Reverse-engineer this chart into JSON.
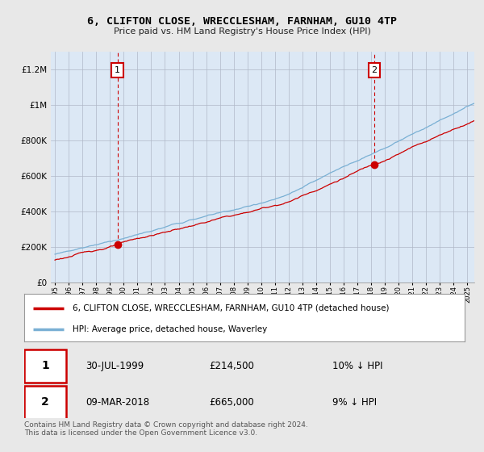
{
  "title": "6, CLIFTON CLOSE, WRECCLESHAM, FARNHAM, GU10 4TP",
  "subtitle": "Price paid vs. HM Land Registry's House Price Index (HPI)",
  "ylim": [
    0,
    1300000
  ],
  "yticks": [
    0,
    200000,
    400000,
    600000,
    800000,
    1000000,
    1200000
  ],
  "ytick_labels": [
    "£0",
    "£200K",
    "£400K",
    "£600K",
    "£800K",
    "£1M",
    "£1.2M"
  ],
  "sale1_year": 1999.58,
  "sale1_price": 214500,
  "sale2_year": 2018.2,
  "sale2_price": 665000,
  "house_color": "#cc0000",
  "hpi_color": "#7ab0d4",
  "legend_house": "6, CLIFTON CLOSE, WRECCLESHAM, FARNHAM, GU10 4TP (detached house)",
  "legend_hpi": "HPI: Average price, detached house, Waverley",
  "annotation1_date": "30-JUL-1999",
  "annotation1_price": "£214,500",
  "annotation1_hpi": "10% ↓ HPI",
  "annotation2_date": "09-MAR-2018",
  "annotation2_price": "£665,000",
  "annotation2_hpi": "9% ↓ HPI",
  "footer": "Contains HM Land Registry data © Crown copyright and database right 2024.\nThis data is licensed under the Open Government Licence v3.0.",
  "bg_color": "#e8e8e8",
  "plot_bg_color": "#dce8f5",
  "xmin": 1995,
  "xmax": 2025.5
}
